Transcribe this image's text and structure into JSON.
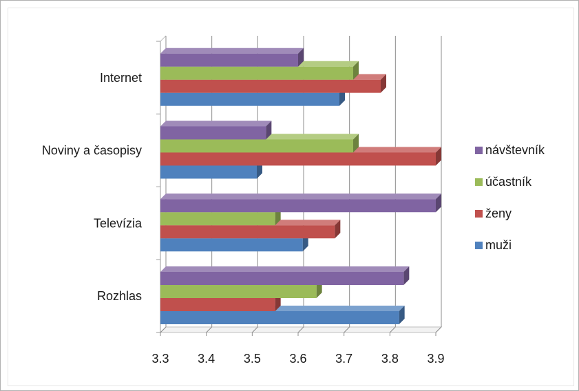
{
  "chart_data": {
    "type": "bar",
    "orientation": "horizontal",
    "three_d": true,
    "categories": [
      "Rozhlas",
      "Televízia",
      "Noviny a časopisy",
      "Internet"
    ],
    "series": [
      {
        "name": "muži",
        "color": "#4f81bd",
        "values": [
          3.82,
          3.61,
          3.51,
          3.69
        ]
      },
      {
        "name": "ženy",
        "color": "#c0504d",
        "values": [
          3.55,
          3.68,
          3.9,
          3.78
        ]
      },
      {
        "name": "účastník",
        "color": "#9bbb59",
        "values": [
          3.64,
          3.55,
          3.72,
          3.72
        ]
      },
      {
        "name": "návštevník",
        "color": "#8064a2",
        "values": [
          3.83,
          3.9,
          3.53,
          3.6
        ]
      }
    ],
    "xlim": [
      3.3,
      3.9
    ],
    "xticks": [
      "3.3",
      "3.4",
      "3.5",
      "3.6",
      "3.7",
      "3.8",
      "3.9"
    ],
    "grid": true,
    "legend_position": "right"
  }
}
